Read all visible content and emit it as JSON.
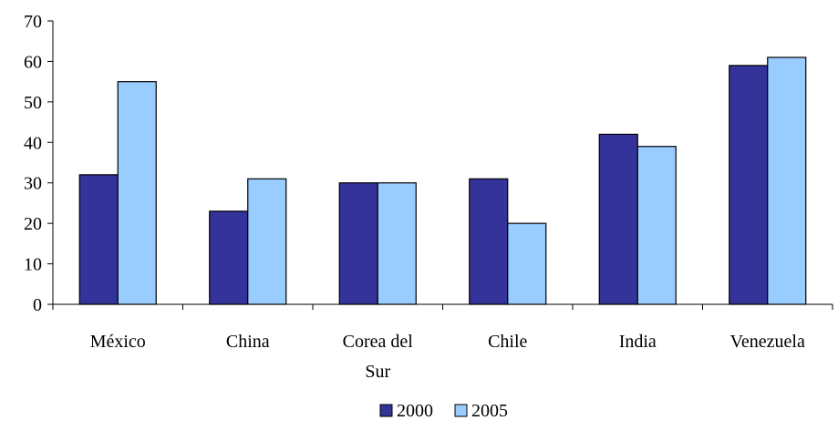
{
  "chart_data": {
    "type": "bar",
    "title": "",
    "xlabel": "",
    "ylabel": "",
    "categories": [
      [
        "México"
      ],
      [
        "China"
      ],
      [
        "Corea del",
        "Sur"
      ],
      [
        "Chile"
      ],
      [
        "India"
      ],
      [
        "Venezuela"
      ]
    ],
    "series": [
      {
        "name": "2000",
        "color": "#333399",
        "values": [
          32,
          23,
          30,
          31,
          42,
          59
        ]
      },
      {
        "name": "2005",
        "color": "#99CCFF",
        "values": [
          55,
          31,
          30,
          20,
          39,
          61
        ]
      }
    ],
    "ylim": [
      0,
      70
    ],
    "yticks": [
      0,
      10,
      20,
      30,
      40,
      50,
      60,
      70
    ],
    "grid": false,
    "legend_position": "bottom"
  }
}
